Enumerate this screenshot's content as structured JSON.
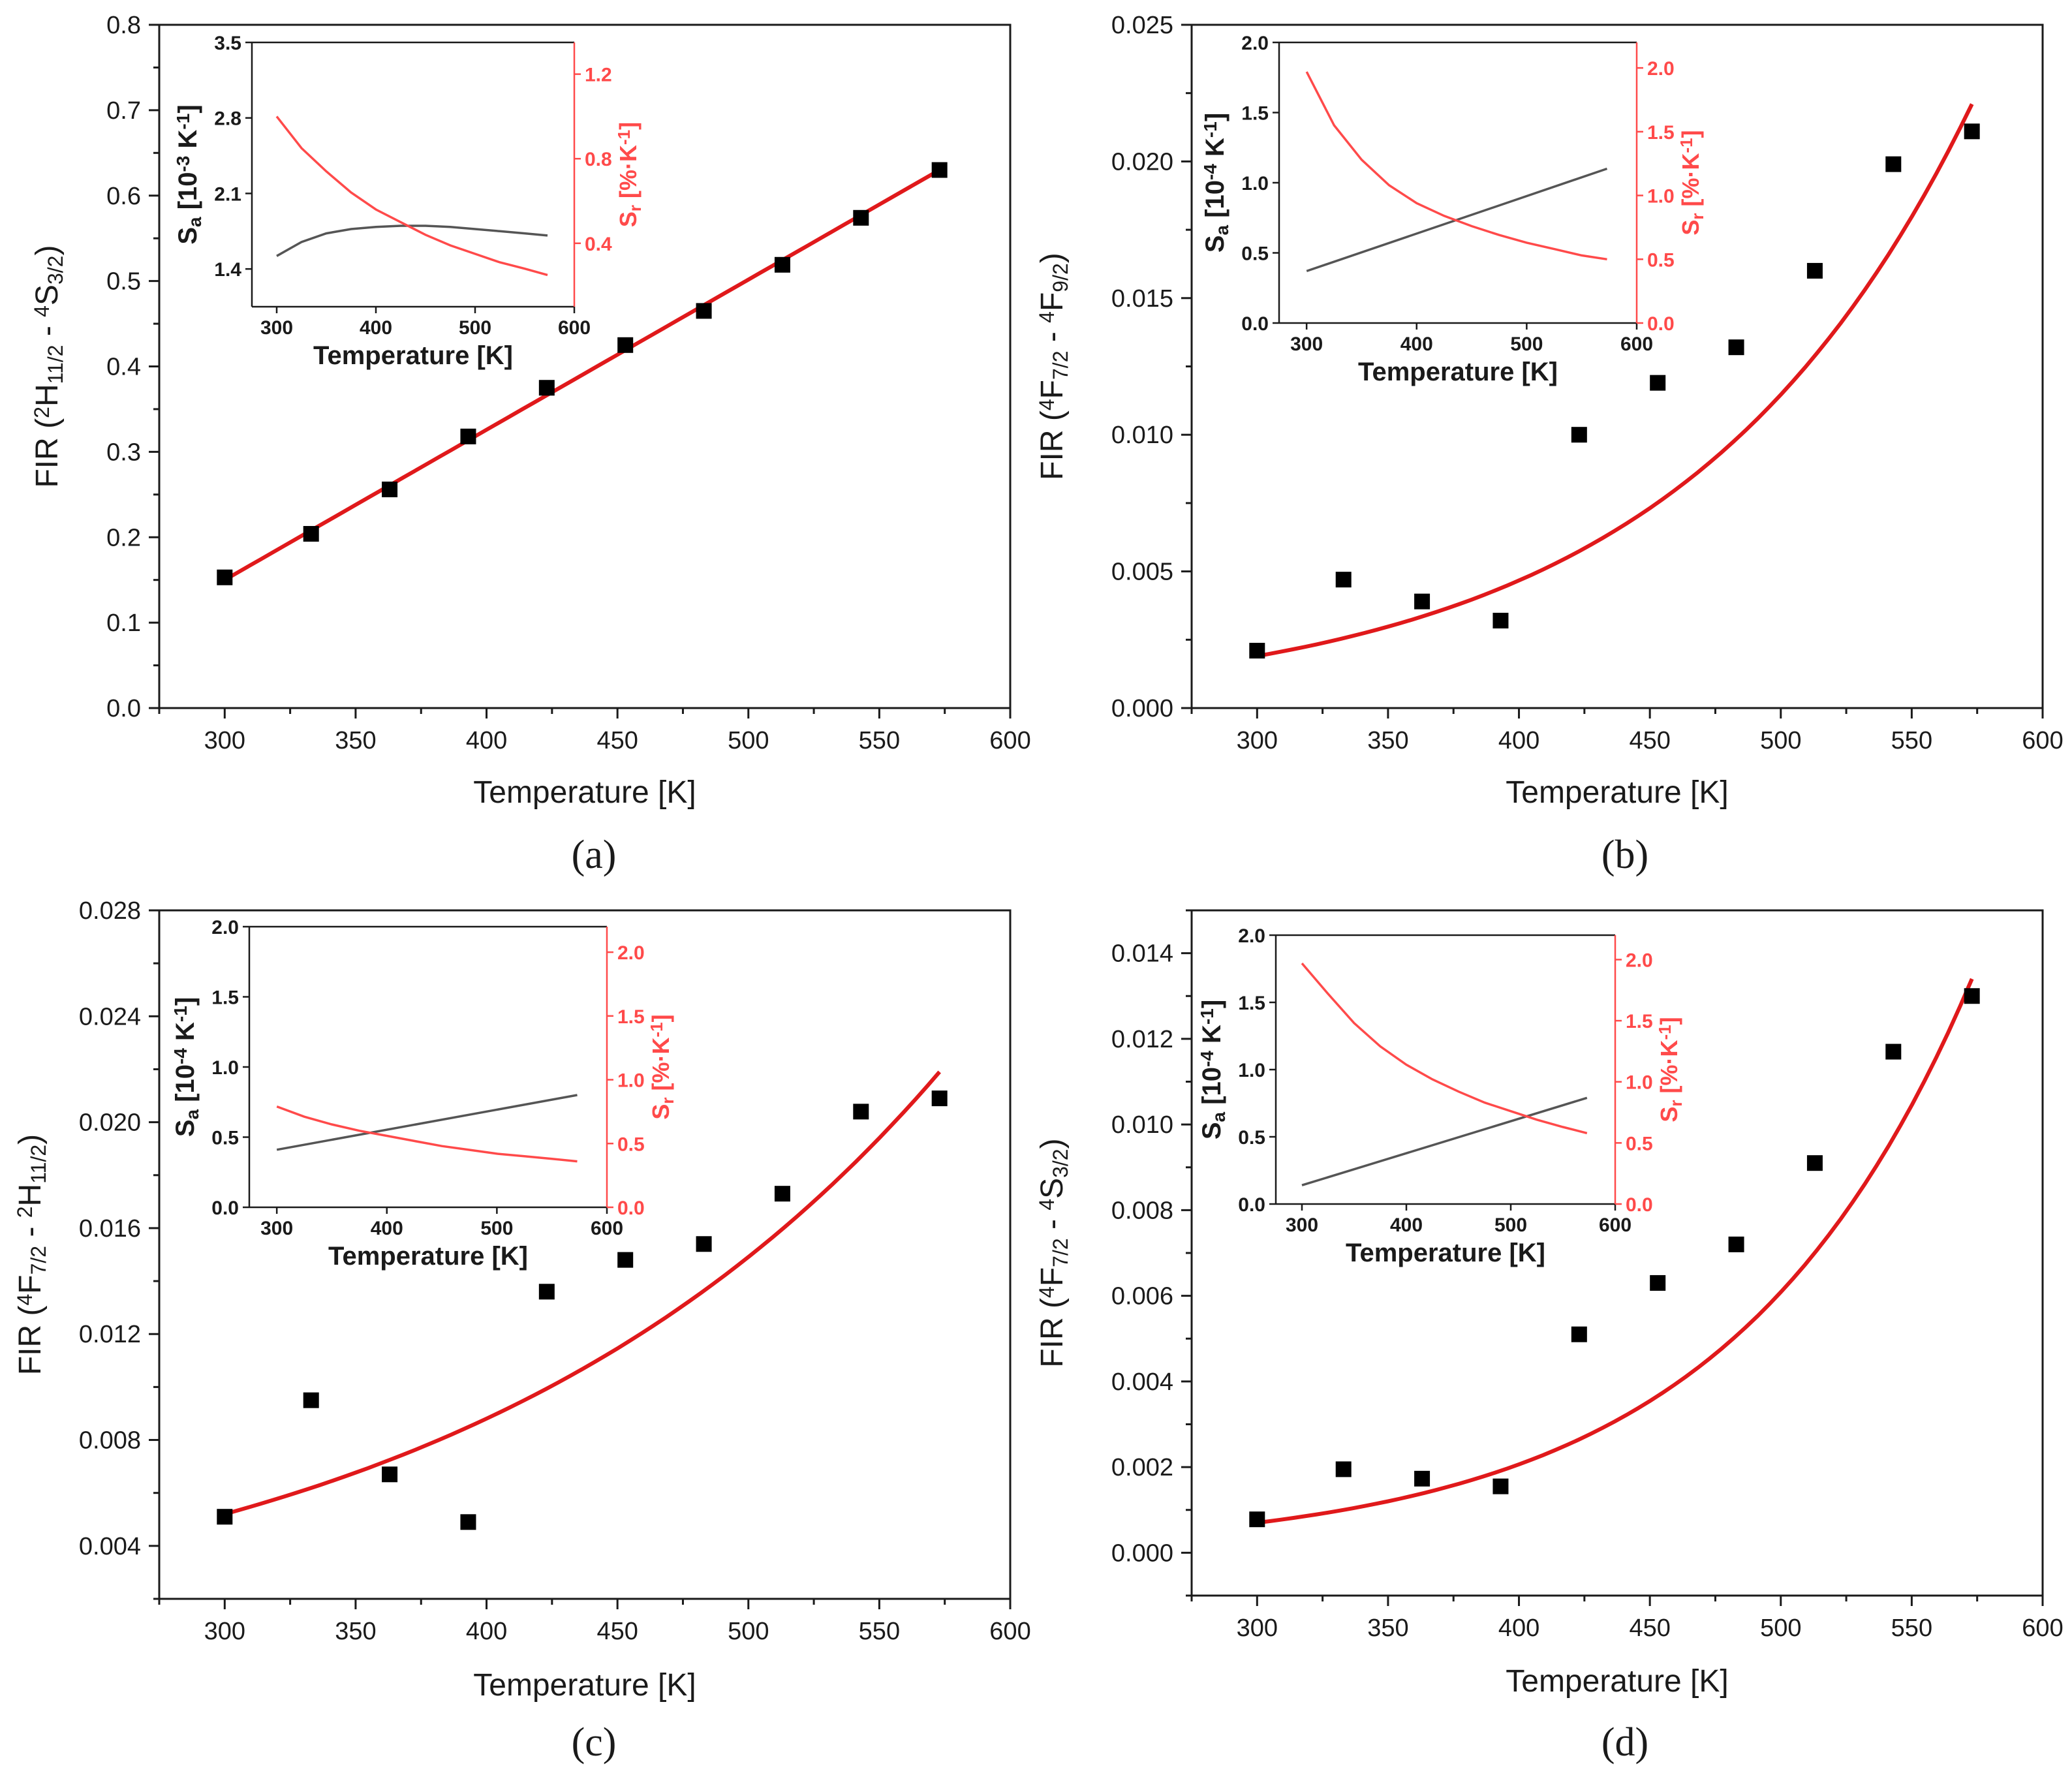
{
  "chart_data": [
    {
      "type": "scatter",
      "panel_label": "(a)",
      "xlabel": "Temperature [K]",
      "ylabel": {
        "pre": "FIR (",
        "a_sup": "2",
        "a_main": "H",
        "a_sub": "11/2",
        "mid": " - ",
        "b_sup": "4",
        "b_main": "S",
        "b_sub": "3/2",
        "post": ")"
      },
      "xlim": [
        275,
        600
      ],
      "ylim": [
        0,
        0.8
      ],
      "xticks": [
        "300",
        "350",
        "400",
        "450",
        "500",
        "550",
        "600"
      ],
      "yticks": [
        "0.0",
        "0.1",
        "0.2",
        "0.3",
        "0.4",
        "0.5",
        "0.6",
        "0.7",
        "0.8"
      ],
      "x": [
        300,
        333,
        363,
        393,
        423,
        453,
        483,
        513,
        543,
        573
      ],
      "y": [
        0.153,
        0.204,
        0.256,
        0.318,
        0.375,
        0.425,
        0.465,
        0.519,
        0.574,
        0.63
      ],
      "fit": {
        "type": "linear",
        "from": 300,
        "to": 573,
        "y0": 0.15,
        "y1": 0.63
      },
      "inset": {
        "xlim": [
          275,
          600
        ],
        "ylim_left": [
          1.05,
          3.5
        ],
        "ylim_right": [
          0.1,
          1.35
        ],
        "xticks": [
          "300",
          "400",
          "500",
          "600"
        ],
        "yticks_left": [
          "1.4",
          "2.1",
          "2.8",
          "3.5"
        ],
        "yticks_right": [
          "0.4",
          "0.8",
          "1.2"
        ],
        "ylabel_left": {
          "main": "S",
          "sub": "a",
          "rest": " [10",
          "exp": "-3",
          "unit": " K",
          "unit_exp": "-1",
          "close": "]"
        },
        "ylabel_right": {
          "main": "S",
          "sub": "r",
          "rest": " [%·K",
          "exp": "-1",
          "close": "]"
        },
        "xlabel": "Temperature [K]",
        "sa": {
          "x": [
            300,
            325,
            350,
            375,
            400,
            425,
            450,
            475,
            500,
            525,
            550,
            573
          ],
          "y": [
            1.52,
            1.65,
            1.73,
            1.77,
            1.79,
            1.8,
            1.8,
            1.79,
            1.77,
            1.75,
            1.73,
            1.71
          ]
        },
        "sr": {
          "x": [
            300,
            325,
            350,
            375,
            400,
            425,
            450,
            475,
            500,
            525,
            550,
            573
          ],
          "y": [
            1.0,
            0.85,
            0.74,
            0.64,
            0.56,
            0.5,
            0.44,
            0.39,
            0.35,
            0.31,
            0.28,
            0.25
          ]
        }
      }
    },
    {
      "type": "scatter",
      "panel_label": "(b)",
      "xlabel": "Temperature [K]",
      "ylabel": {
        "pre": "FIR (",
        "a_sup": "4",
        "a_main": "F",
        "a_sub": "7/2",
        "mid": " - ",
        "b_sup": "4",
        "b_main": "F",
        "b_sub": "9/2",
        "post": ")"
      },
      "xlim": [
        275,
        600
      ],
      "ylim": [
        0,
        0.025
      ],
      "xticks": [
        "300",
        "350",
        "400",
        "450",
        "500",
        "550",
        "600"
      ],
      "yticks": [
        "0.000",
        "0.005",
        "0.010",
        "0.015",
        "0.020",
        "0.025"
      ],
      "x": [
        300,
        333,
        363,
        393,
        423,
        453,
        483,
        513,
        543,
        573
      ],
      "y": [
        0.0021,
        0.0047,
        0.0039,
        0.0032,
        0.01,
        0.0119,
        0.0132,
        0.016,
        0.0199,
        0.0211
      ],
      "fit": {
        "type": "exp",
        "from": 300,
        "to": 573,
        "y0": 0.0019,
        "y1": 0.0221
      },
      "inset": {
        "xlim": [
          275,
          600
        ],
        "ylim_left": [
          0,
          2.0
        ],
        "ylim_right": [
          0,
          2.2
        ],
        "xticks": [
          "300",
          "400",
          "500",
          "600"
        ],
        "yticks_left": [
          "0.0",
          "0.5",
          "1.0",
          "1.5",
          "2.0"
        ],
        "yticks_right": [
          "0.0",
          "0.5",
          "1.0",
          "1.5",
          "2.0"
        ],
        "ylabel_left": {
          "main": "S",
          "sub": "a",
          "rest": " [10",
          "exp": "-4",
          "unit": " K",
          "unit_exp": "-1",
          "close": "]"
        },
        "ylabel_right": {
          "main": "S",
          "sub": "r",
          "rest": " [%·K",
          "exp": "-1",
          "close": "]"
        },
        "xlabel": "Temperature [K]",
        "sa": {
          "x": [
            300,
            573
          ],
          "y": [
            0.37,
            1.1
          ]
        },
        "sr": {
          "x": [
            300,
            325,
            350,
            375,
            400,
            425,
            450,
            475,
            500,
            525,
            550,
            573
          ],
          "y": [
            1.97,
            1.55,
            1.28,
            1.08,
            0.94,
            0.84,
            0.76,
            0.69,
            0.63,
            0.58,
            0.53,
            0.5
          ]
        }
      }
    },
    {
      "type": "scatter",
      "panel_label": "(c)",
      "xlabel": "Temperature [K]",
      "ylabel": {
        "pre": "FIR (",
        "a_sup": "4",
        "a_main": "F",
        "a_sub": "7/2",
        "mid": " - ",
        "b_sup": "2",
        "b_main": "H",
        "b_sub": "11/2",
        "post": ")"
      },
      "xlim": [
        275,
        600
      ],
      "ylim": [
        0.002,
        0.028
      ],
      "xticks": [
        "300",
        "350",
        "400",
        "450",
        "500",
        "550",
        "600"
      ],
      "yticks": [
        "0.004",
        "0.008",
        "0.012",
        "0.016",
        "0.020",
        "0.024",
        "0.028"
      ],
      "x": [
        300,
        333,
        363,
        393,
        423,
        453,
        483,
        513,
        543,
        573
      ],
      "y": [
        0.0051,
        0.0095,
        0.0067,
        0.0049,
        0.0136,
        0.0148,
        0.0154,
        0.0173,
        0.0204,
        0.0209
      ],
      "fit": {
        "type": "exp",
        "from": 300,
        "to": 573,
        "y0": 0.0052,
        "y1": 0.0219
      },
      "inset": {
        "xlim": [
          275,
          600
        ],
        "ylim_left": [
          0,
          2.0
        ],
        "ylim_right": [
          0,
          2.2
        ],
        "xticks": [
          "300",
          "400",
          "500",
          "600"
        ],
        "yticks_left": [
          "0.0",
          "0.5",
          "1.0",
          "1.5",
          "2.0"
        ],
        "yticks_right": [
          "0.0",
          "0.5",
          "1.0",
          "1.5",
          "2.0"
        ],
        "ylabel_left": {
          "main": "S",
          "sub": "a",
          "rest": " [10",
          "exp": "-4",
          "unit": " K",
          "unit_exp": "-1",
          "close": "]"
        },
        "ylabel_right": {
          "main": "S",
          "sub": "r",
          "rest": " [%·K",
          "exp": "-1",
          "close": "]"
        },
        "xlabel": "Temperature [K]",
        "sa": {
          "x": [
            300,
            573
          ],
          "y": [
            0.41,
            0.8
          ]
        },
        "sr": {
          "x": [
            300,
            325,
            350,
            375,
            400,
            425,
            450,
            475,
            500,
            525,
            550,
            573
          ],
          "y": [
            0.79,
            0.71,
            0.65,
            0.6,
            0.56,
            0.52,
            0.48,
            0.45,
            0.42,
            0.4,
            0.38,
            0.36
          ]
        }
      }
    },
    {
      "type": "scatter",
      "panel_label": "(d)",
      "xlabel": "Temperature [K]",
      "ylabel": {
        "pre": "FIR (",
        "a_sup": "4",
        "a_main": "F",
        "a_sub": "7/2",
        "mid": " - ",
        "b_sup": "4",
        "b_main": "S",
        "b_sub": "3/2",
        "post": ")"
      },
      "xlim": [
        275,
        600
      ],
      "ylim": [
        -0.001,
        0.015
      ],
      "xticks": [
        "300",
        "350",
        "400",
        "450",
        "500",
        "550",
        "600"
      ],
      "yticks": [
        "0.000",
        "0.002",
        "0.004",
        "0.006",
        "0.008",
        "0.010",
        "0.012",
        "0.014"
      ],
      "x": [
        300,
        333,
        363,
        393,
        423,
        453,
        483,
        513,
        543,
        573
      ],
      "y": [
        0.00078,
        0.00195,
        0.00173,
        0.00155,
        0.0051,
        0.0063,
        0.0072,
        0.0091,
        0.0117,
        0.013
      ],
      "fit": {
        "type": "exp",
        "from": 300,
        "to": 573,
        "y0": 0.0007,
        "y1": 0.0134
      },
      "inset": {
        "xlim": [
          275,
          600
        ],
        "ylim_left": [
          0,
          2.0
        ],
        "ylim_right": [
          0,
          2.2
        ],
        "xticks": [
          "300",
          "400",
          "500",
          "600"
        ],
        "yticks_left": [
          "0.0",
          "0.5",
          "1.0",
          "1.5",
          "2.0"
        ],
        "yticks_right": [
          "0.0",
          "0.5",
          "1.0",
          "1.5",
          "2.0"
        ],
        "ylabel_left": {
          "main": "S",
          "sub": "a",
          "rest": " [10",
          "exp": "-4",
          "unit": " K",
          "unit_exp": "-1",
          "close": "]"
        },
        "ylabel_right": {
          "main": "S",
          "sub": "r",
          "rest": " [%·K",
          "exp": "-1",
          "close": "]"
        },
        "xlabel": "Temperature [K]",
        "sa": {
          "x": [
            300,
            573
          ],
          "y": [
            0.14,
            0.79
          ]
        },
        "sr": {
          "x": [
            300,
            325,
            350,
            375,
            400,
            425,
            450,
            475,
            500,
            525,
            550,
            573
          ],
          "y": [
            1.97,
            1.72,
            1.48,
            1.29,
            1.14,
            1.02,
            0.92,
            0.83,
            0.76,
            0.69,
            0.63,
            0.58
          ]
        }
      }
    }
  ],
  "colors": {
    "scatter": "#000000",
    "fit": "#e0191b",
    "sa": "#555555",
    "sr": "#ff4a4a",
    "axis": "#1a1a1a"
  }
}
